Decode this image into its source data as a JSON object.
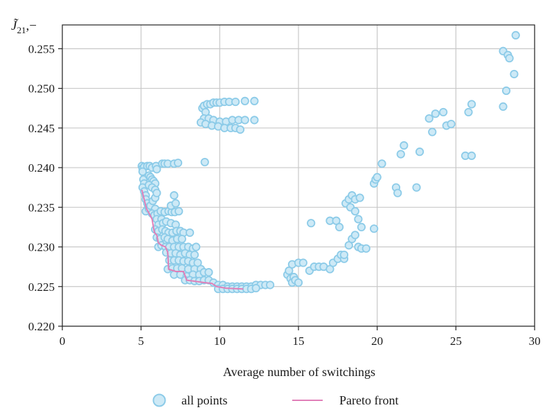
{
  "chart_data": {
    "type": "scatter",
    "title": "",
    "xlabel": "Average number of switchings",
    "ylabel": {
      "main": "J̃",
      "sub": "21",
      "rest": ",−"
    },
    "xlim": [
      0,
      30
    ],
    "ylim": [
      0.22,
      0.258
    ],
    "xticks": [
      "0",
      "5",
      "10",
      "15",
      "20",
      "25",
      "30"
    ],
    "yticks": [
      "0.220",
      "0.225",
      "0.230",
      "0.235",
      "0.240",
      "0.245",
      "0.250",
      "0.255"
    ],
    "grid": true,
    "legend_position": "bottom",
    "colors": {
      "points_fill": "#cde9f6",
      "points_edge": "#8ccbe8",
      "pareto": "#e07fb8",
      "grid": "#c8c8c8",
      "axis": "#222222"
    },
    "series": [
      {
        "name": "all points",
        "kind": "scatter",
        "points": [
          [
            5.05,
            0.2402
          ],
          [
            5.1,
            0.2399
          ],
          [
            5.2,
            0.2401
          ],
          [
            5.4,
            0.2402
          ],
          [
            5.55,
            0.2402
          ],
          [
            5.7,
            0.24
          ],
          [
            5.95,
            0.2402
          ],
          [
            6.0,
            0.2398
          ],
          [
            6.35,
            0.2405
          ],
          [
            6.5,
            0.2405
          ],
          [
            6.7,
            0.2405
          ],
          [
            7.1,
            0.2405
          ],
          [
            7.35,
            0.2406
          ],
          [
            9.05,
            0.2407
          ],
          [
            5.1,
            0.2395
          ],
          [
            5.15,
            0.2385
          ],
          [
            5.2,
            0.238
          ],
          [
            5.1,
            0.2375
          ],
          [
            5.2,
            0.237
          ],
          [
            5.3,
            0.2365
          ],
          [
            5.5,
            0.239
          ],
          [
            5.6,
            0.2388
          ],
          [
            5.7,
            0.2385
          ],
          [
            5.8,
            0.2383
          ],
          [
            5.9,
            0.238
          ],
          [
            5.5,
            0.2378
          ],
          [
            5.7,
            0.2375
          ],
          [
            5.9,
            0.2372
          ],
          [
            5.3,
            0.236
          ],
          [
            5.4,
            0.2355
          ],
          [
            5.45,
            0.235
          ],
          [
            5.3,
            0.2345
          ],
          [
            5.5,
            0.2348
          ],
          [
            5.6,
            0.2352
          ],
          [
            5.75,
            0.2358
          ],
          [
            5.9,
            0.2362
          ],
          [
            6.0,
            0.2368
          ],
          [
            5.9,
            0.2348
          ],
          [
            5.7,
            0.2342
          ],
          [
            5.85,
            0.234
          ],
          [
            6.05,
            0.2342
          ],
          [
            6.25,
            0.2345
          ],
          [
            6.5,
            0.2344
          ],
          [
            6.75,
            0.2345
          ],
          [
            6.95,
            0.2344
          ],
          [
            7.15,
            0.2344
          ],
          [
            7.4,
            0.2345
          ],
          [
            6.9,
            0.2352
          ],
          [
            7.2,
            0.2355
          ],
          [
            7.1,
            0.2365
          ],
          [
            6.0,
            0.2335
          ],
          [
            6.3,
            0.2335
          ],
          [
            6.1,
            0.2328
          ],
          [
            6.4,
            0.233
          ],
          [
            6.6,
            0.2332
          ],
          [
            6.9,
            0.233
          ],
          [
            7.2,
            0.2328
          ],
          [
            5.9,
            0.2322
          ],
          [
            6.1,
            0.232
          ],
          [
            6.35,
            0.2322
          ],
          [
            6.55,
            0.232
          ],
          [
            6.75,
            0.2318
          ],
          [
            7.0,
            0.2318
          ],
          [
            7.25,
            0.232
          ],
          [
            7.5,
            0.232
          ],
          [
            7.7,
            0.2318
          ],
          [
            8.1,
            0.2318
          ],
          [
            6.0,
            0.2312
          ],
          [
            6.2,
            0.231
          ],
          [
            6.5,
            0.2312
          ],
          [
            6.7,
            0.231
          ],
          [
            7.0,
            0.2308
          ],
          [
            7.3,
            0.231
          ],
          [
            7.6,
            0.231
          ],
          [
            6.1,
            0.23
          ],
          [
            6.3,
            0.2302
          ],
          [
            6.55,
            0.23
          ],
          [
            6.8,
            0.23
          ],
          [
            7.1,
            0.23
          ],
          [
            7.4,
            0.23
          ],
          [
            7.7,
            0.23
          ],
          [
            8.0,
            0.23
          ],
          [
            8.3,
            0.2298
          ],
          [
            8.5,
            0.23
          ],
          [
            6.6,
            0.2293
          ],
          [
            6.9,
            0.2292
          ],
          [
            7.2,
            0.2292
          ],
          [
            7.5,
            0.229
          ],
          [
            7.8,
            0.2292
          ],
          [
            8.1,
            0.229
          ],
          [
            8.4,
            0.229
          ],
          [
            6.8,
            0.2283
          ],
          [
            7.1,
            0.2283
          ],
          [
            7.4,
            0.2283
          ],
          [
            7.7,
            0.2282
          ],
          [
            8.0,
            0.2282
          ],
          [
            8.3,
            0.228
          ],
          [
            8.6,
            0.228
          ],
          [
            6.7,
            0.2272
          ],
          [
            7.0,
            0.2273
          ],
          [
            7.3,
            0.2273
          ],
          [
            7.6,
            0.2273
          ],
          [
            8.0,
            0.2272
          ],
          [
            8.4,
            0.2272
          ],
          [
            8.8,
            0.2272
          ],
          [
            7.1,
            0.2265
          ],
          [
            7.5,
            0.2265
          ],
          [
            7.9,
            0.2263
          ],
          [
            8.3,
            0.2265
          ],
          [
            8.7,
            0.2265
          ],
          [
            9.0,
            0.2268
          ],
          [
            9.3,
            0.2268
          ],
          [
            7.8,
            0.2258
          ],
          [
            8.1,
            0.2258
          ],
          [
            8.4,
            0.2257
          ],
          [
            8.7,
            0.2257
          ],
          [
            9.0,
            0.2258
          ],
          [
            9.3,
            0.2258
          ],
          [
            9.6,
            0.2255
          ],
          [
            9.9,
            0.2252
          ],
          [
            10.2,
            0.2252
          ],
          [
            10.5,
            0.225
          ],
          [
            10.8,
            0.225
          ],
          [
            11.1,
            0.225
          ],
          [
            11.4,
            0.225
          ],
          [
            11.7,
            0.225
          ],
          [
            12.0,
            0.225
          ],
          [
            12.3,
            0.2252
          ],
          [
            12.6,
            0.2252
          ],
          [
            12.9,
            0.2252
          ],
          [
            13.2,
            0.2252
          ],
          [
            9.9,
            0.2247
          ],
          [
            10.2,
            0.2247
          ],
          [
            10.5,
            0.2247
          ],
          [
            10.8,
            0.2247
          ],
          [
            11.1,
            0.2247
          ],
          [
            11.4,
            0.2247
          ],
          [
            11.7,
            0.2247
          ],
          [
            12.0,
            0.2247
          ],
          [
            12.3,
            0.2248
          ],
          [
            8.9,
            0.2475
          ],
          [
            9.0,
            0.2478
          ],
          [
            9.1,
            0.247
          ],
          [
            9.2,
            0.248
          ],
          [
            9.4,
            0.248
          ],
          [
            9.6,
            0.2482
          ],
          [
            9.8,
            0.2482
          ],
          [
            10.0,
            0.2482
          ],
          [
            10.3,
            0.2483
          ],
          [
            10.6,
            0.2483
          ],
          [
            11.0,
            0.2483
          ],
          [
            11.6,
            0.2484
          ],
          [
            12.2,
            0.2484
          ],
          [
            9.0,
            0.2462
          ],
          [
            9.3,
            0.2462
          ],
          [
            9.6,
            0.246
          ],
          [
            10.0,
            0.2458
          ],
          [
            10.4,
            0.2458
          ],
          [
            10.8,
            0.246
          ],
          [
            11.2,
            0.246
          ],
          [
            11.6,
            0.246
          ],
          [
            12.2,
            0.246
          ],
          [
            8.8,
            0.2457
          ],
          [
            9.1,
            0.2455
          ],
          [
            9.5,
            0.2453
          ],
          [
            9.9,
            0.2452
          ],
          [
            10.3,
            0.245
          ],
          [
            10.7,
            0.245
          ],
          [
            11.0,
            0.245
          ],
          [
            11.3,
            0.2448
          ],
          [
            14.3,
            0.2265
          ],
          [
            14.5,
            0.226
          ],
          [
            14.6,
            0.2255
          ],
          [
            14.7,
            0.2262
          ],
          [
            14.8,
            0.2258
          ],
          [
            15.0,
            0.2255
          ],
          [
            14.4,
            0.227
          ],
          [
            14.6,
            0.2278
          ],
          [
            15.0,
            0.228
          ],
          [
            15.3,
            0.228
          ],
          [
            15.7,
            0.227
          ],
          [
            15.8,
            0.233
          ],
          [
            16.0,
            0.2275
          ],
          [
            16.3,
            0.2275
          ],
          [
            16.6,
            0.2275
          ],
          [
            17.0,
            0.2272
          ],
          [
            17.2,
            0.228
          ],
          [
            17.5,
            0.2285
          ],
          [
            17.7,
            0.229
          ],
          [
            17.9,
            0.2285
          ],
          [
            17.0,
            0.2333
          ],
          [
            17.4,
            0.2333
          ],
          [
            17.6,
            0.2325
          ],
          [
            17.9,
            0.229
          ],
          [
            18.2,
            0.2302
          ],
          [
            18.4,
            0.231
          ],
          [
            18.6,
            0.2315
          ],
          [
            18.8,
            0.23
          ],
          [
            19.0,
            0.2298
          ],
          [
            19.3,
            0.2298
          ],
          [
            18.0,
            0.2355
          ],
          [
            18.2,
            0.236
          ],
          [
            18.4,
            0.2365
          ],
          [
            18.6,
            0.236
          ],
          [
            18.9,
            0.2362
          ],
          [
            18.3,
            0.235
          ],
          [
            18.6,
            0.2345
          ],
          [
            18.8,
            0.2335
          ],
          [
            19.0,
            0.2325
          ],
          [
            19.8,
            0.2323
          ],
          [
            19.8,
            0.238
          ],
          [
            19.9,
            0.2385
          ],
          [
            20.0,
            0.2388
          ],
          [
            20.3,
            0.2405
          ],
          [
            21.2,
            0.2375
          ],
          [
            21.3,
            0.2368
          ],
          [
            21.5,
            0.2417
          ],
          [
            21.7,
            0.2428
          ],
          [
            22.5,
            0.2375
          ],
          [
            22.7,
            0.242
          ],
          [
            23.3,
            0.2462
          ],
          [
            23.5,
            0.2445
          ],
          [
            23.7,
            0.2468
          ],
          [
            24.2,
            0.247
          ],
          [
            24.4,
            0.2453
          ],
          [
            24.7,
            0.2455
          ],
          [
            25.6,
            0.2415
          ],
          [
            25.8,
            0.247
          ],
          [
            26.0,
            0.248
          ],
          [
            26.0,
            0.2415
          ],
          [
            28.0,
            0.2547
          ],
          [
            28.0,
            0.2477
          ],
          [
            28.2,
            0.2497
          ],
          [
            28.3,
            0.2542
          ],
          [
            28.4,
            0.2538
          ],
          [
            28.7,
            0.2518
          ],
          [
            28.8,
            0.2567
          ]
        ]
      },
      {
        "name": "Pareto front",
        "kind": "line",
        "points": [
          [
            5.05,
            0.2372
          ],
          [
            5.2,
            0.236
          ],
          [
            5.35,
            0.2348
          ],
          [
            5.5,
            0.2343
          ],
          [
            5.7,
            0.2335
          ],
          [
            5.85,
            0.2318
          ],
          [
            6.0,
            0.2315
          ],
          [
            6.1,
            0.2305
          ],
          [
            6.3,
            0.2302
          ],
          [
            6.55,
            0.23
          ],
          [
            6.7,
            0.2293
          ],
          [
            6.75,
            0.2272
          ],
          [
            7.2,
            0.2269
          ],
          [
            7.7,
            0.2269
          ],
          [
            7.9,
            0.2258
          ],
          [
            8.3,
            0.2257
          ],
          [
            9.0,
            0.2255
          ],
          [
            9.5,
            0.2254
          ],
          [
            9.8,
            0.225
          ],
          [
            10.4,
            0.2248
          ],
          [
            11.5,
            0.2247
          ]
        ]
      }
    ]
  }
}
